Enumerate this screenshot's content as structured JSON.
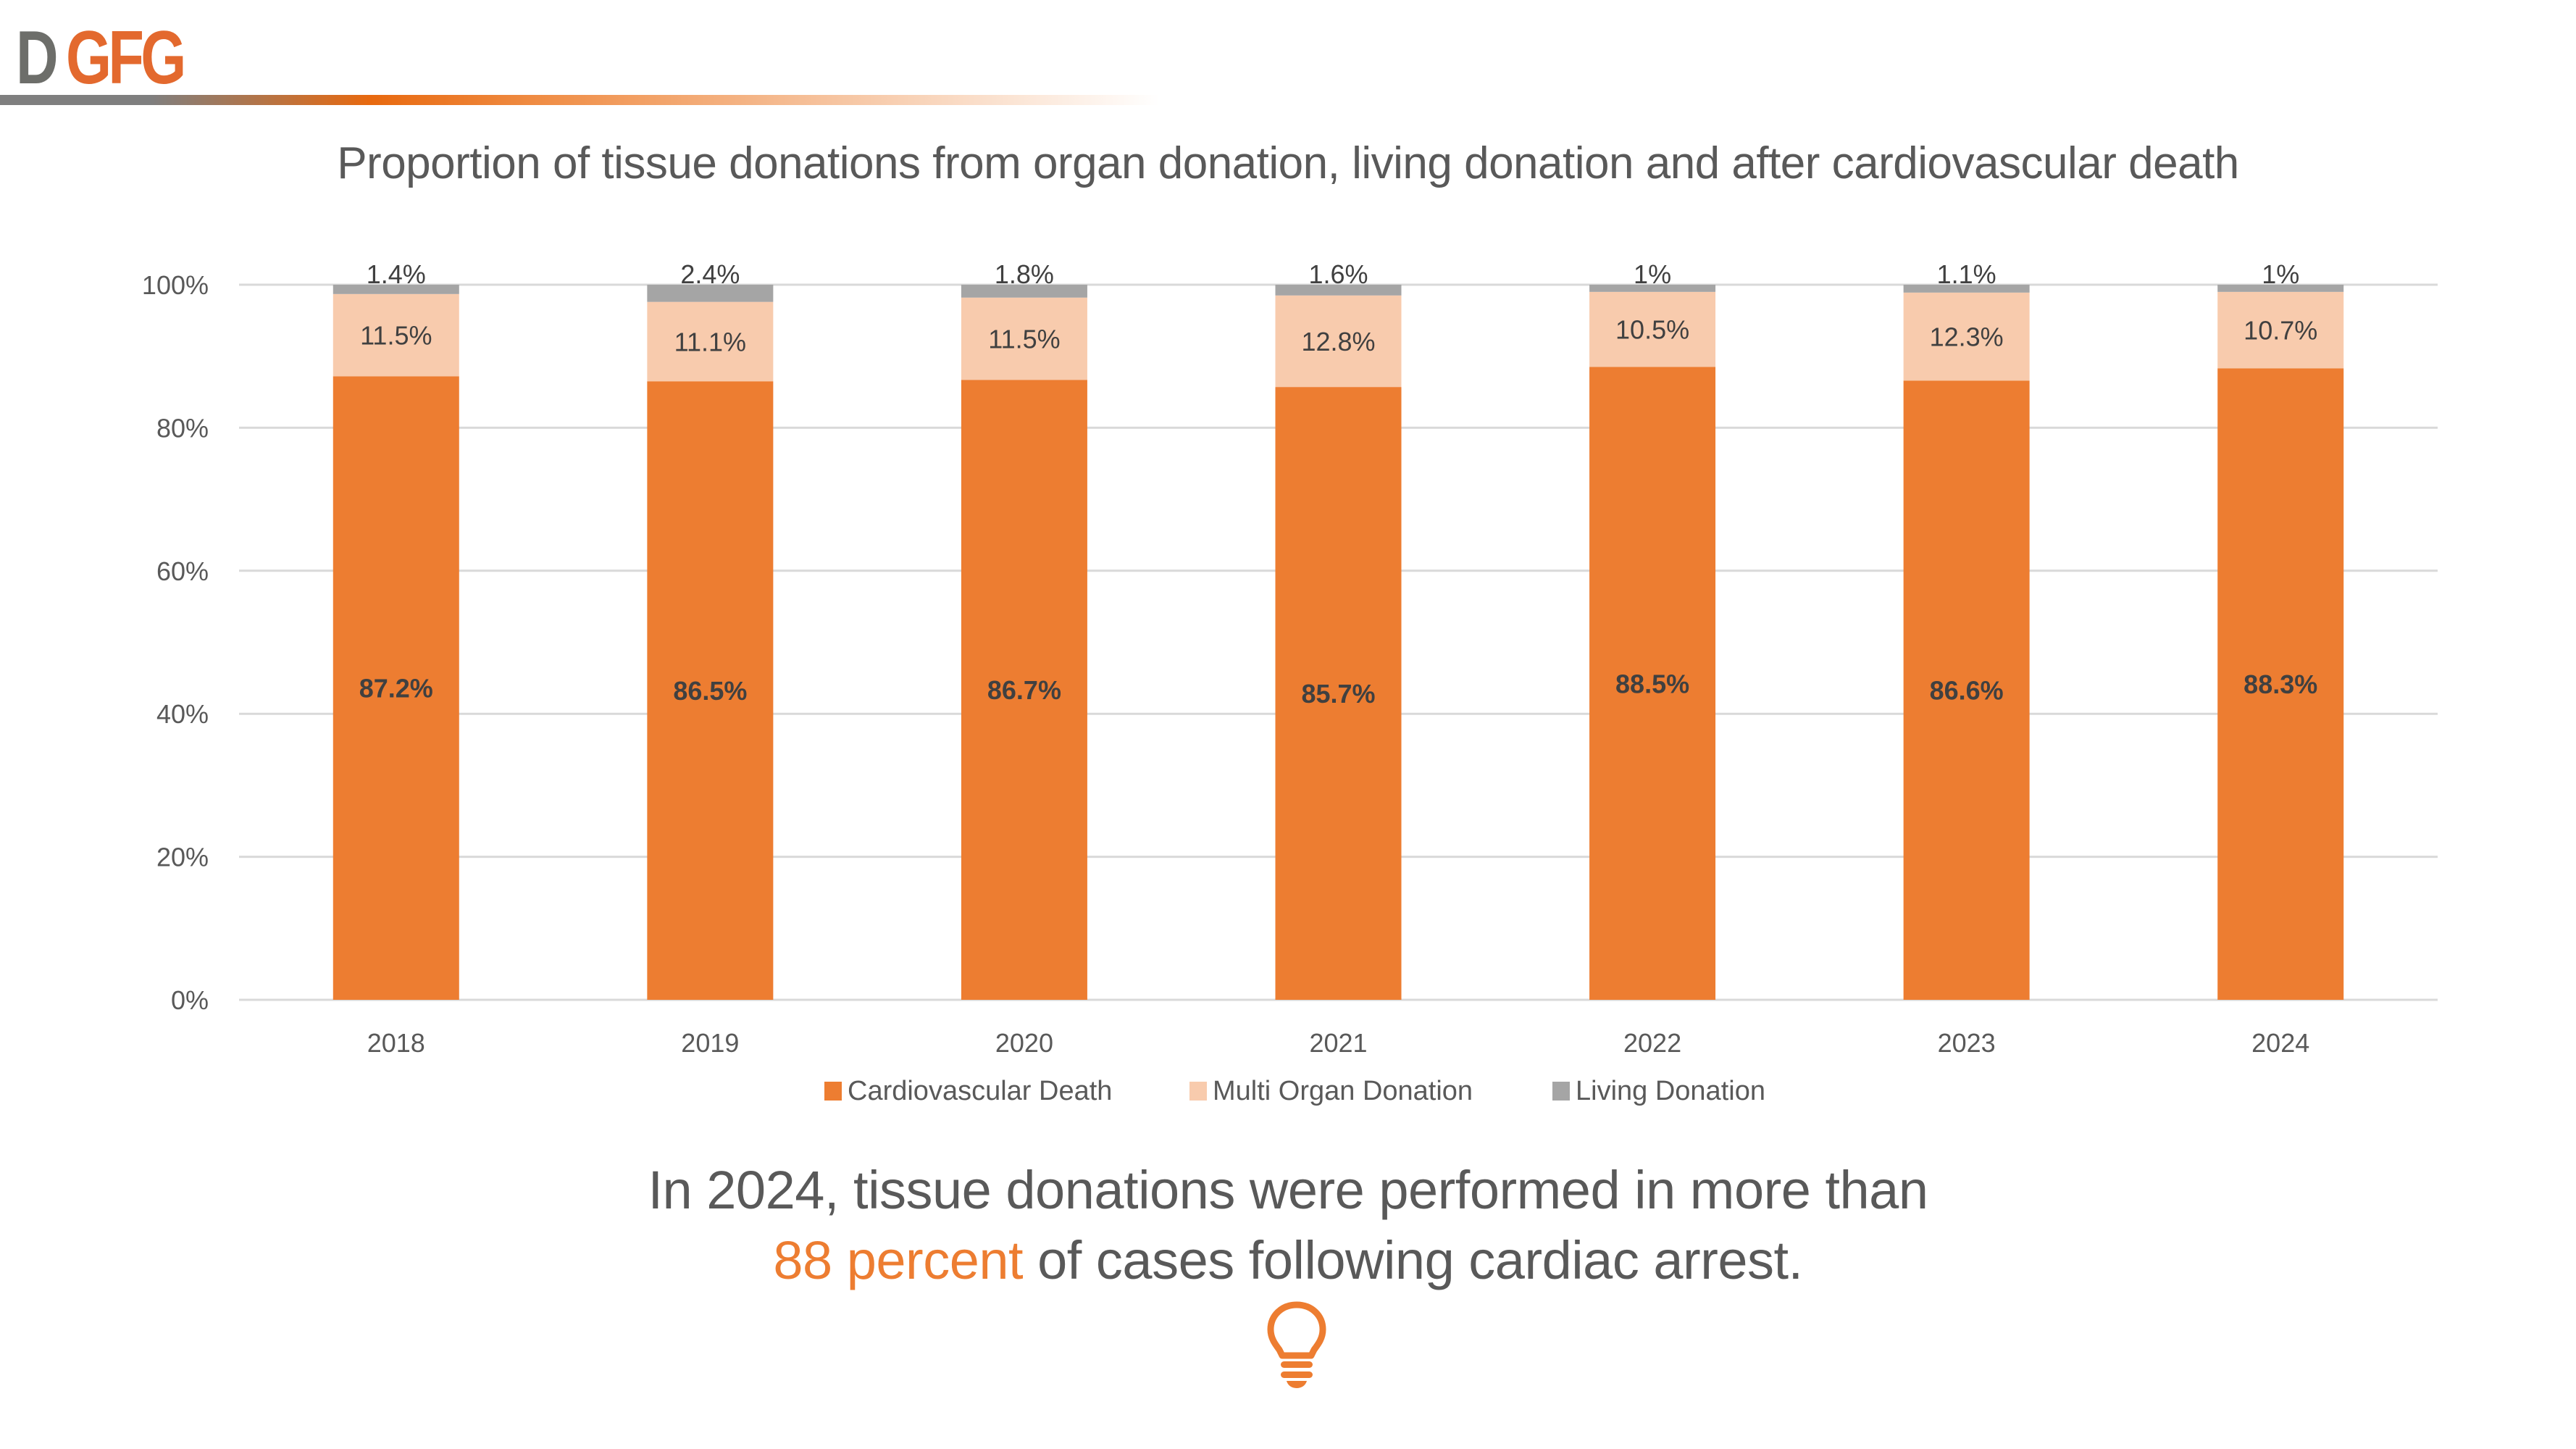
{
  "brand": {
    "logo_part1": "D",
    "logo_part2": "GFG"
  },
  "slide": {
    "title": "Proportion of tissue donations from organ donation, living donation and after cardiovascular death",
    "takeaway_line1": "In 2024, tissue donations were performed in more than",
    "takeaway_highlight": "88 percent",
    "takeaway_line2_rest": " of cases following cardiac arrest.",
    "icon": "lightbulb-icon"
  },
  "colors": {
    "cardiovascular": "#ed7d31",
    "multi_organ": "#f8cbad",
    "living": "#a5a5a5",
    "accent": "#ed7d31",
    "text": "#595959",
    "grid": "#d9d9d9"
  },
  "chart_data": {
    "type": "bar",
    "stacked": true,
    "title": "Proportion of tissue donations from organ donation, living donation and after cardiovascular death",
    "xlabel": "",
    "ylabel": "",
    "ylim": [
      0,
      100
    ],
    "yticks": [
      0,
      20,
      40,
      60,
      80,
      100
    ],
    "ytick_labels": [
      "0%",
      "20%",
      "40%",
      "60%",
      "80%",
      "100%"
    ],
    "grid": true,
    "legend_position": "bottom",
    "categories": [
      "2018",
      "2019",
      "2020",
      "2021",
      "2022",
      "2023",
      "2024"
    ],
    "series": [
      {
        "name": "Cardiovascular Death",
        "color": "#ed7d31",
        "values": [
          87.2,
          86.5,
          86.7,
          85.7,
          88.5,
          86.6,
          88.3
        ],
        "labels": [
          "87.2%",
          "86.5%",
          "86.7%",
          "85.7%",
          "88.5%",
          "86.6%",
          "88.3%"
        ]
      },
      {
        "name": "Multi Organ Donation",
        "color": "#f8cbad",
        "values": [
          11.5,
          11.1,
          11.5,
          12.8,
          10.5,
          12.3,
          10.7
        ],
        "labels": [
          "11.5%",
          "11.1%",
          "11.5%",
          "12.8%",
          "10.5%",
          "12.3%",
          "10.7%"
        ]
      },
      {
        "name": "Living Donation",
        "color": "#a5a5a5",
        "values": [
          1.4,
          2.4,
          1.8,
          1.6,
          1.0,
          1.1,
          1.0
        ],
        "labels": [
          "1.4%",
          "2.4%",
          "1.8%",
          "1.6%",
          "1%",
          "1.1%",
          "1%"
        ]
      }
    ]
  }
}
